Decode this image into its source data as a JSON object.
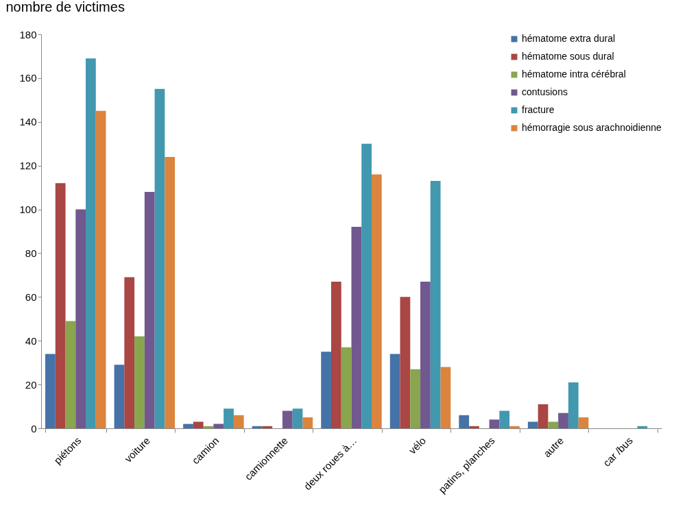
{
  "chart_data": {
    "type": "bar",
    "ylabel": "nombre de victimes",
    "categories": [
      "piétons",
      "voiture",
      "camion",
      "camionnette",
      "deux roues à…",
      "vélo",
      "patins, planches",
      "autre",
      "car /bus"
    ],
    "series": [
      {
        "name": "hématome extra dural",
        "color": "#4572a7",
        "values": [
          34,
          29,
          2,
          1,
          35,
          34,
          6,
          3,
          0
        ]
      },
      {
        "name": "hématome sous dural",
        "color": "#aa4643",
        "values": [
          112,
          69,
          3,
          1,
          67,
          60,
          1,
          11,
          0
        ]
      },
      {
        "name": "hématome intra cérébral",
        "color": "#89a54e",
        "values": [
          49,
          42,
          1,
          0,
          37,
          27,
          0,
          3,
          0
        ]
      },
      {
        "name": "contusions",
        "color": "#71588f",
        "values": [
          100,
          108,
          2,
          8,
          92,
          67,
          4,
          7,
          0
        ]
      },
      {
        "name": "fracture",
        "color": "#4198af",
        "values": [
          169,
          155,
          9,
          9,
          130,
          113,
          8,
          21,
          1
        ]
      },
      {
        "name": "hémorragie sous arachnoidienne",
        "color": "#db843d",
        "values": [
          145,
          124,
          6,
          5,
          116,
          28,
          1,
          5,
          0
        ]
      }
    ],
    "ylim": [
      0,
      180
    ],
    "yticks": [
      0,
      20,
      40,
      60,
      80,
      100,
      120,
      140,
      160,
      180
    ],
    "grid": false,
    "legend": "top right"
  }
}
